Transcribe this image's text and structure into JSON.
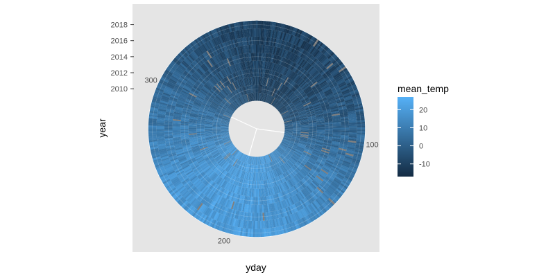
{
  "chart_data": {
    "type": "heatmap",
    "coord": "polar",
    "theta_var": "yday",
    "r_var": "year",
    "fill_var": "mean_temp",
    "xlabel": "yday",
    "ylabel": "year",
    "yday_range": [
      1,
      366
    ],
    "year_range": [
      2005,
      2019
    ],
    "data_year_range": [
      2009,
      2018
    ],
    "inner_radius_year": 2005,
    "theta_ticks": [
      100,
      200,
      300
    ],
    "r_ticks": [
      2010,
      2012,
      2014,
      2016,
      2018
    ],
    "fill_range": [
      -17,
      27
    ],
    "legend": {
      "title": "mean_temp",
      "ticks": [
        20,
        10,
        0,
        -10
      ],
      "low_color": "#132B43",
      "high_color": "#56B1F7",
      "placement": "right"
    },
    "seasonal_model": {
      "mean": 5,
      "amplitude": 15,
      "peak_yday": 200,
      "noise": 5,
      "missing_color": "#7f7f7f"
    },
    "panel_background": "#e5e5e5",
    "grid": true
  }
}
